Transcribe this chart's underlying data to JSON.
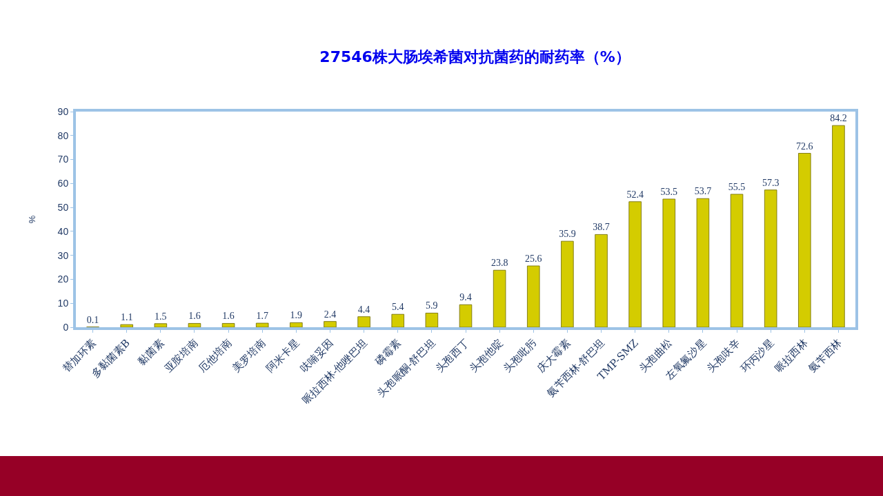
{
  "chart_data": {
    "type": "bar",
    "title": "27546株大肠埃希菌对抗菌药的耐药率（%）",
    "ylabel": "%",
    "categories": [
      "替加环素",
      "多黏菌素B",
      "黏菌素",
      "亚胺培南",
      "厄他培南",
      "美罗培南",
      "阿米卡星",
      "呋喃妥因",
      "哌拉西林-他唑巴坦",
      "磷霉素",
      "头孢哌酮-舒巴坦",
      "头孢西丁",
      "头孢他啶",
      "头孢吡肟",
      "庆大霉素",
      "氨苄西林-舒巴坦",
      "TMP-SMZ",
      "头孢曲松",
      "左氧氟沙星",
      "头孢呋辛",
      "环丙沙星",
      "哌拉西林",
      "氨苄西林"
    ],
    "values": [
      0.1,
      1.1,
      1.5,
      1.6,
      1.6,
      1.7,
      1.9,
      2.4,
      4.4,
      5.4,
      5.9,
      9.4,
      23.8,
      25.6,
      35.9,
      38.7,
      52.4,
      53.5,
      53.7,
      55.5,
      57.3,
      72.6,
      84.2
    ],
    "color": "#d4cc00",
    "ylim": [
      0,
      90
    ],
    "yticks": [
      0,
      10,
      20,
      30,
      40,
      50,
      60,
      70,
      80,
      90
    ],
    "grid": false,
    "data_labels": true
  }
}
